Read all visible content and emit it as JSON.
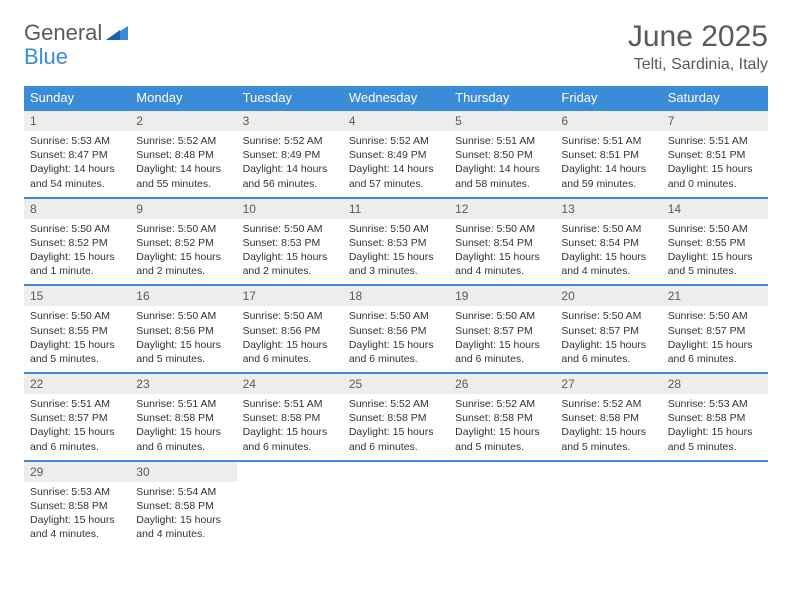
{
  "logo": {
    "text1": "General",
    "text2": "Blue",
    "color1": "#5a5a5a",
    "color2": "#3a8bd8"
  },
  "header": {
    "month": "June 2025",
    "location": "Telti, Sardinia, Italy"
  },
  "colors": {
    "header_bg": "#3a8bd8",
    "header_text": "#ffffff",
    "daynum_bg": "#ededed",
    "daynum_text": "#5a5a5a",
    "body_text": "#333333",
    "rule": "#3a8bd8"
  },
  "day_names": [
    "Sunday",
    "Monday",
    "Tuesday",
    "Wednesday",
    "Thursday",
    "Friday",
    "Saturday"
  ],
  "weeks": [
    [
      {
        "n": "1",
        "sr": "Sunrise: 5:53 AM",
        "ss": "Sunset: 8:47 PM",
        "dl": "Daylight: 14 hours and 54 minutes."
      },
      {
        "n": "2",
        "sr": "Sunrise: 5:52 AM",
        "ss": "Sunset: 8:48 PM",
        "dl": "Daylight: 14 hours and 55 minutes."
      },
      {
        "n": "3",
        "sr": "Sunrise: 5:52 AM",
        "ss": "Sunset: 8:49 PM",
        "dl": "Daylight: 14 hours and 56 minutes."
      },
      {
        "n": "4",
        "sr": "Sunrise: 5:52 AM",
        "ss": "Sunset: 8:49 PM",
        "dl": "Daylight: 14 hours and 57 minutes."
      },
      {
        "n": "5",
        "sr": "Sunrise: 5:51 AM",
        "ss": "Sunset: 8:50 PM",
        "dl": "Daylight: 14 hours and 58 minutes."
      },
      {
        "n": "6",
        "sr": "Sunrise: 5:51 AM",
        "ss": "Sunset: 8:51 PM",
        "dl": "Daylight: 14 hours and 59 minutes."
      },
      {
        "n": "7",
        "sr": "Sunrise: 5:51 AM",
        "ss": "Sunset: 8:51 PM",
        "dl": "Daylight: 15 hours and 0 minutes."
      }
    ],
    [
      {
        "n": "8",
        "sr": "Sunrise: 5:50 AM",
        "ss": "Sunset: 8:52 PM",
        "dl": "Daylight: 15 hours and 1 minute."
      },
      {
        "n": "9",
        "sr": "Sunrise: 5:50 AM",
        "ss": "Sunset: 8:52 PM",
        "dl": "Daylight: 15 hours and 2 minutes."
      },
      {
        "n": "10",
        "sr": "Sunrise: 5:50 AM",
        "ss": "Sunset: 8:53 PM",
        "dl": "Daylight: 15 hours and 2 minutes."
      },
      {
        "n": "11",
        "sr": "Sunrise: 5:50 AM",
        "ss": "Sunset: 8:53 PM",
        "dl": "Daylight: 15 hours and 3 minutes."
      },
      {
        "n": "12",
        "sr": "Sunrise: 5:50 AM",
        "ss": "Sunset: 8:54 PM",
        "dl": "Daylight: 15 hours and 4 minutes."
      },
      {
        "n": "13",
        "sr": "Sunrise: 5:50 AM",
        "ss": "Sunset: 8:54 PM",
        "dl": "Daylight: 15 hours and 4 minutes."
      },
      {
        "n": "14",
        "sr": "Sunrise: 5:50 AM",
        "ss": "Sunset: 8:55 PM",
        "dl": "Daylight: 15 hours and 5 minutes."
      }
    ],
    [
      {
        "n": "15",
        "sr": "Sunrise: 5:50 AM",
        "ss": "Sunset: 8:55 PM",
        "dl": "Daylight: 15 hours and 5 minutes."
      },
      {
        "n": "16",
        "sr": "Sunrise: 5:50 AM",
        "ss": "Sunset: 8:56 PM",
        "dl": "Daylight: 15 hours and 5 minutes."
      },
      {
        "n": "17",
        "sr": "Sunrise: 5:50 AM",
        "ss": "Sunset: 8:56 PM",
        "dl": "Daylight: 15 hours and 6 minutes."
      },
      {
        "n": "18",
        "sr": "Sunrise: 5:50 AM",
        "ss": "Sunset: 8:56 PM",
        "dl": "Daylight: 15 hours and 6 minutes."
      },
      {
        "n": "19",
        "sr": "Sunrise: 5:50 AM",
        "ss": "Sunset: 8:57 PM",
        "dl": "Daylight: 15 hours and 6 minutes."
      },
      {
        "n": "20",
        "sr": "Sunrise: 5:50 AM",
        "ss": "Sunset: 8:57 PM",
        "dl": "Daylight: 15 hours and 6 minutes."
      },
      {
        "n": "21",
        "sr": "Sunrise: 5:50 AM",
        "ss": "Sunset: 8:57 PM",
        "dl": "Daylight: 15 hours and 6 minutes."
      }
    ],
    [
      {
        "n": "22",
        "sr": "Sunrise: 5:51 AM",
        "ss": "Sunset: 8:57 PM",
        "dl": "Daylight: 15 hours and 6 minutes."
      },
      {
        "n": "23",
        "sr": "Sunrise: 5:51 AM",
        "ss": "Sunset: 8:58 PM",
        "dl": "Daylight: 15 hours and 6 minutes."
      },
      {
        "n": "24",
        "sr": "Sunrise: 5:51 AM",
        "ss": "Sunset: 8:58 PM",
        "dl": "Daylight: 15 hours and 6 minutes."
      },
      {
        "n": "25",
        "sr": "Sunrise: 5:52 AM",
        "ss": "Sunset: 8:58 PM",
        "dl": "Daylight: 15 hours and 6 minutes."
      },
      {
        "n": "26",
        "sr": "Sunrise: 5:52 AM",
        "ss": "Sunset: 8:58 PM",
        "dl": "Daylight: 15 hours and 5 minutes."
      },
      {
        "n": "27",
        "sr": "Sunrise: 5:52 AM",
        "ss": "Sunset: 8:58 PM",
        "dl": "Daylight: 15 hours and 5 minutes."
      },
      {
        "n": "28",
        "sr": "Sunrise: 5:53 AM",
        "ss": "Sunset: 8:58 PM",
        "dl": "Daylight: 15 hours and 5 minutes."
      }
    ],
    [
      {
        "n": "29",
        "sr": "Sunrise: 5:53 AM",
        "ss": "Sunset: 8:58 PM",
        "dl": "Daylight: 15 hours and 4 minutes."
      },
      {
        "n": "30",
        "sr": "Sunrise: 5:54 AM",
        "ss": "Sunset: 8:58 PM",
        "dl": "Daylight: 15 hours and 4 minutes."
      },
      {
        "n": "",
        "sr": "",
        "ss": "",
        "dl": ""
      },
      {
        "n": "",
        "sr": "",
        "ss": "",
        "dl": ""
      },
      {
        "n": "",
        "sr": "",
        "ss": "",
        "dl": ""
      },
      {
        "n": "",
        "sr": "",
        "ss": "",
        "dl": ""
      },
      {
        "n": "",
        "sr": "",
        "ss": "",
        "dl": ""
      }
    ]
  ]
}
